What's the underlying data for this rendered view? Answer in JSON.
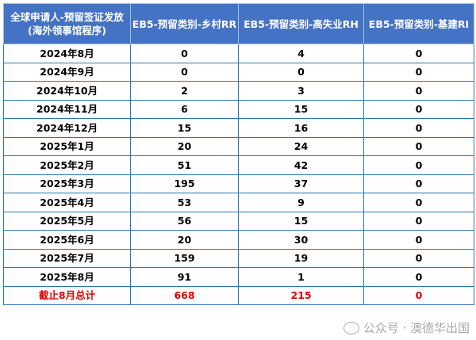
{
  "header": [
    "全球申请人-预留签证发放\n(海外领事馆程序)",
    "EB5-预留类别-乡村RR",
    "EB5-预留类别-高失业RH",
    "EB5-预留类别-基建RI"
  ],
  "header_line1": "全球申请人-预留签证发放",
  "header_line2": "(海外领事馆程序)",
  "rows": [
    [
      "2024年8月",
      "0",
      "4",
      "0"
    ],
    [
      "2024年9月",
      "0",
      "0",
      "0"
    ],
    [
      "2024年10月",
      "2",
      "3",
      "0"
    ],
    [
      "2024年11月",
      "6",
      "15",
      "0"
    ],
    [
      "2024年12月",
      "15",
      "16",
      "0"
    ],
    [
      "2025年1月",
      "20",
      "24",
      "0"
    ],
    [
      "2025年2月",
      "51",
      "42",
      "0"
    ],
    [
      "2025年3月",
      "195",
      "37",
      "0"
    ],
    [
      "2025年4月",
      "53",
      "9",
      "0"
    ],
    [
      "2025年5月",
      "56",
      "15",
      "0"
    ],
    [
      "2025年6月",
      "20",
      "30",
      "0"
    ],
    [
      "2025年7月",
      "159",
      "19",
      "0"
    ],
    [
      "2025年8月",
      "91",
      "1",
      "0"
    ]
  ],
  "total": [
    "截止8月总计",
    "668",
    "215",
    "0"
  ],
  "watermark": "公众号 · 澳德华出国",
  "colors": {
    "header_bg": "#4472C4",
    "border": "#2E75B6",
    "total_text": "#E00000"
  }
}
